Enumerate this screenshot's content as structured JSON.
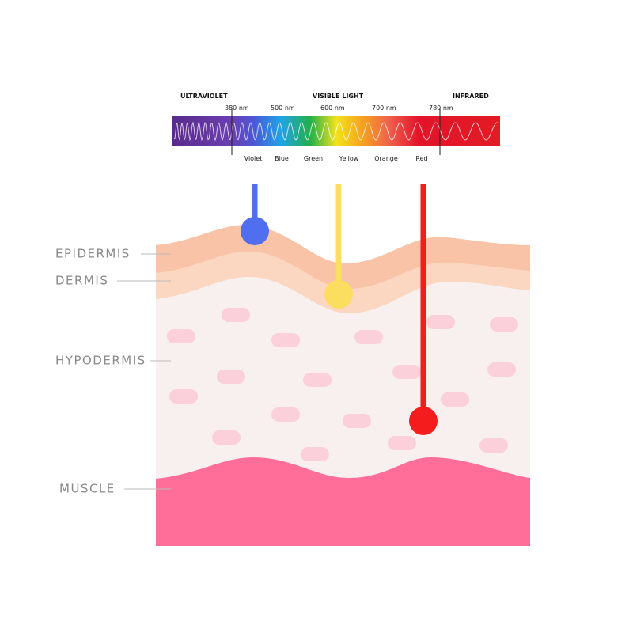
{
  "spectrum": {
    "regions": [
      "ULTRAVIOLET",
      "VISIBLE LIGHT",
      "INFRARED"
    ],
    "wavelengths": [
      "380 nm",
      "500 nm",
      "600 nm",
      "700 nm",
      "780 nm"
    ],
    "colors": [
      "Violet",
      "Blue",
      "Green",
      "Yellow",
      "Orange",
      "Red"
    ]
  },
  "layers": [
    "EPIDERMIS",
    "DERMIS",
    "HYPODERMIS",
    "MUSCLE"
  ]
}
